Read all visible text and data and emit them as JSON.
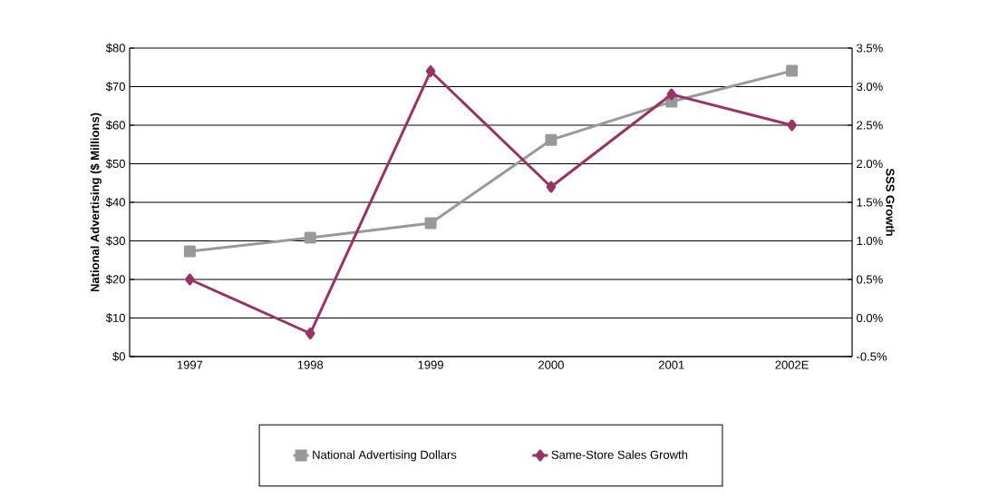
{
  "chart_data": {
    "type": "line",
    "ylabel": "National Advertising ($ Millions)",
    "y2label": "SSS Growth",
    "categories": [
      "1997",
      "1998",
      "1999",
      "2000",
      "2001",
      "2002E"
    ],
    "series": [
      {
        "name": "National Advertising Dollars",
        "color": "#999999",
        "marker": "square",
        "values": [
          27.3,
          30.8,
          34.6,
          56.2,
          66.1,
          74.1
        ]
      },
      {
        "name": "Same-Store Sales Growth",
        "color": "#993366",
        "marker": "diamond",
        "axis": "y2",
        "values": [
          0.5,
          -0.2,
          3.2,
          1.7,
          2.9,
          2.5
        ]
      }
    ],
    "ylim": [
      0,
      80
    ],
    "yticks": [
      {
        "value": 0,
        "label": "$0"
      },
      {
        "value": 10,
        "label": "$10"
      },
      {
        "value": 20,
        "label": "$20"
      },
      {
        "value": 30,
        "label": "$30"
      },
      {
        "value": 40,
        "label": "$40"
      },
      {
        "value": 50,
        "label": "$50"
      },
      {
        "value": 60,
        "label": "$60"
      },
      {
        "value": 70,
        "label": "$70"
      },
      {
        "value": 80,
        "label": "$80"
      }
    ],
    "y2lim": [
      -0.5,
      3.5
    ],
    "y2ticks": [
      {
        "value": -0.5,
        "label": "-0.5%"
      },
      {
        "value": 0,
        "label": "0.0%"
      },
      {
        "value": 0.5,
        "label": "0.5%"
      },
      {
        "value": 1,
        "label": "1.0%"
      },
      {
        "value": 1.5,
        "label": "1.5%"
      },
      {
        "value": 2,
        "label": "2.0%"
      },
      {
        "value": 2.5,
        "label": "2.5%"
      },
      {
        "value": 3,
        "label": "3.0%"
      },
      {
        "value": 3.5,
        "label": "3.5%"
      }
    ],
    "grid": "y",
    "legend": "bottom",
    "line_style": "solid"
  }
}
